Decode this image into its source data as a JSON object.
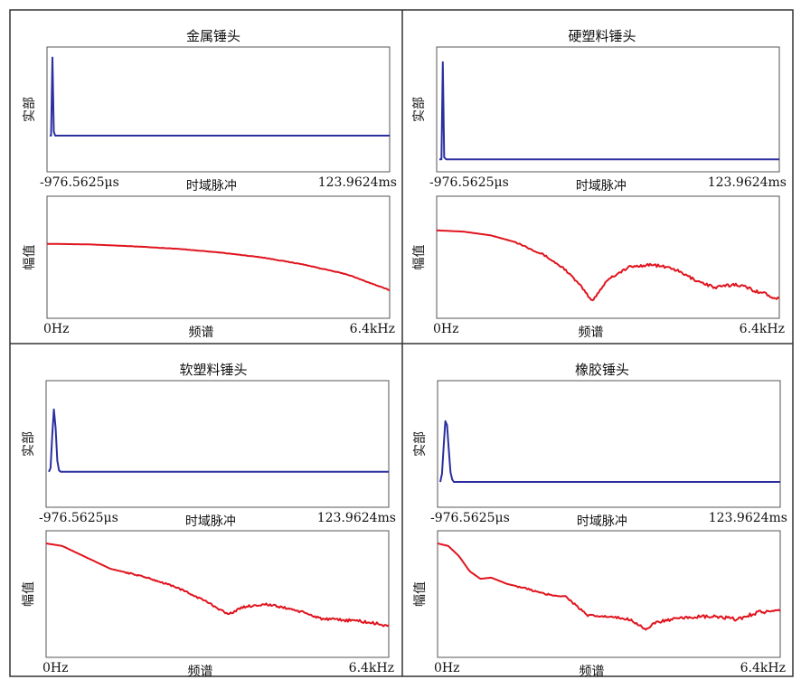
{
  "colors": {
    "time_trace": "#2b2f9e",
    "freq_trace": "#e0141e",
    "frame": "#333333",
    "axes_box": "#555555"
  },
  "panels": [
    {
      "title": "金属锤头",
      "time_plot": {
        "ylabel": "实部",
        "xlabel": "时域脉冲",
        "x_start": "-976.5625μs",
        "x_end": "123.9624ms"
      },
      "freq_plot": {
        "ylabel": "幅值",
        "xlabel": "频谱",
        "x_start": "0Hz",
        "x_end": "6.4kHz"
      }
    },
    {
      "title": "硬塑料锤头",
      "time_plot": {
        "ylabel": "实部",
        "xlabel": "时域脉冲",
        "x_start": "-976.5625μs",
        "x_end": "123.9624ms"
      },
      "freq_plot": {
        "ylabel": "幅值",
        "xlabel": "频谱",
        "x_start": "0Hz",
        "x_end": "6.4kHz"
      }
    },
    {
      "title": "软塑料锤头",
      "time_plot": {
        "ylabel": "实部",
        "xlabel": "时域脉冲",
        "x_start": "-976.5625μs",
        "x_end": "123.9624ms"
      },
      "freq_plot": {
        "ylabel": "幅值",
        "xlabel": "频谱",
        "x_start": "0Hz",
        "x_end": "6.4kHz"
      }
    },
    {
      "title": "橡胶锤头",
      "time_plot": {
        "ylabel": "实部",
        "xlabel": "时域脉冲",
        "x_start": "-976.5625μs",
        "x_end": "123.9624ms"
      },
      "freq_plot": {
        "ylabel": "幅值",
        "xlabel": "频谱",
        "x_start": "0Hz",
        "x_end": "6.4kHz"
      }
    }
  ],
  "chart_data": [
    {
      "type": "line",
      "panel": "金属锤头",
      "plot": "时域脉冲",
      "xlabel": "时域脉冲",
      "ylabel": "实部",
      "x_range_labels": [
        "-976.5625μs",
        "123.9624ms"
      ],
      "x_unit": "fraction of span",
      "y_unit": "normalized amplitude",
      "x": [
        0,
        0.004,
        0.008,
        0.012,
        0.016,
        0.02,
        1.0
      ],
      "y": [
        0,
        0,
        0.92,
        0.05,
        0,
        0,
        0
      ]
    },
    {
      "type": "line",
      "panel": "金属锤头",
      "plot": "频谱",
      "xlabel": "频谱",
      "ylabel": "幅值",
      "x_range_labels": [
        "0Hz",
        "6.4kHz"
      ],
      "x_unit": "kHz",
      "y_unit": "normalized amplitude",
      "x": [
        0,
        0.8,
        1.6,
        2.4,
        3.2,
        4.0,
        4.8,
        5.6,
        6.4
      ],
      "y": [
        0.61,
        0.605,
        0.59,
        0.57,
        0.54,
        0.5,
        0.44,
        0.36,
        0.23
      ]
    },
    {
      "type": "line",
      "panel": "硬塑料锤头",
      "plot": "时域脉冲",
      "xlabel": "时域脉冲",
      "ylabel": "实部",
      "x_range_labels": [
        "-976.5625μs",
        "123.9624ms"
      ],
      "x_unit": "fraction of span",
      "y_unit": "normalized amplitude",
      "x": [
        0,
        0.006,
        0.01,
        0.014,
        0.02,
        1.0
      ],
      "y": [
        0,
        0,
        0.95,
        0.02,
        0,
        0
      ]
    },
    {
      "type": "line",
      "panel": "硬塑料锤头",
      "plot": "频谱",
      "xlabel": "频谱",
      "ylabel": "幅值",
      "x_range_labels": [
        "0Hz",
        "6.4kHz"
      ],
      "x_unit": "kHz",
      "y_unit": "normalized amplitude",
      "x": [
        0,
        0.5,
        1.0,
        1.5,
        2.0,
        2.4,
        2.7,
        2.9,
        3.2,
        3.6,
        4.0,
        4.4,
        4.8,
        5.2,
        5.6,
        6.0,
        6.4
      ],
      "y": [
        0.72,
        0.71,
        0.68,
        0.62,
        0.52,
        0.4,
        0.26,
        0.14,
        0.32,
        0.42,
        0.44,
        0.41,
        0.32,
        0.25,
        0.28,
        0.22,
        0.16
      ]
    },
    {
      "type": "line",
      "panel": "软塑料锤头",
      "plot": "时域脉冲",
      "xlabel": "时域脉冲",
      "ylabel": "实部",
      "x_range_labels": [
        "-976.5625μs",
        "123.9624ms"
      ],
      "x_unit": "fraction of span",
      "y_unit": "normalized amplitude",
      "x": [
        0,
        0.005,
        0.01,
        0.015,
        0.02,
        0.025,
        0.03,
        0.035,
        1.0
      ],
      "y": [
        0,
        0.05,
        0.5,
        0.85,
        0.6,
        0.15,
        0.02,
        0,
        0
      ]
    },
    {
      "type": "line",
      "panel": "软塑料锤头",
      "plot": "频谱",
      "xlabel": "频谱",
      "ylabel": "幅值",
      "x_range_labels": [
        "0Hz",
        "6.4kHz"
      ],
      "x_unit": "kHz",
      "y_unit": "normalized amplitude",
      "x": [
        0,
        0.3,
        0.7,
        1.2,
        1.8,
        2.4,
        3.0,
        3.4,
        3.7,
        4.1,
        4.6,
        5.2,
        5.8,
        6.4
      ],
      "y": [
        0.9,
        0.88,
        0.8,
        0.7,
        0.64,
        0.56,
        0.44,
        0.34,
        0.4,
        0.42,
        0.38,
        0.3,
        0.29,
        0.25
      ]
    },
    {
      "type": "line",
      "panel": "橡胶锤头",
      "plot": "时域脉冲",
      "xlabel": "时域脉冲",
      "ylabel": "实部",
      "x_range_labels": [
        "-976.5625μs",
        "123.9624ms"
      ],
      "x_unit": "fraction of span",
      "y_unit": "normalized amplitude",
      "x": [
        0,
        0.005,
        0.01,
        0.015,
        0.02,
        0.025,
        0.03,
        0.035,
        0.04,
        0.05,
        1.0
      ],
      "y": [
        0,
        0.1,
        0.45,
        0.75,
        0.7,
        0.4,
        0.12,
        0.03,
        0,
        0,
        0
      ]
    },
    {
      "type": "line",
      "panel": "橡胶锤头",
      "plot": "频谱",
      "xlabel": "频谱",
      "ylabel": "幅值",
      "x_range_labels": [
        "0Hz",
        "6.4kHz"
      ],
      "x_unit": "kHz",
      "y_unit": "normalized amplitude",
      "x": [
        0,
        0.2,
        0.4,
        0.6,
        0.8,
        1.0,
        1.3,
        1.6,
        2.0,
        2.4,
        2.8,
        3.2,
        3.6,
        3.9,
        4.1,
        4.4,
        4.8,
        5.2,
        5.6,
        6.0,
        6.4
      ],
      "y": [
        0.9,
        0.88,
        0.8,
        0.68,
        0.62,
        0.63,
        0.58,
        0.55,
        0.5,
        0.48,
        0.33,
        0.32,
        0.3,
        0.22,
        0.28,
        0.3,
        0.32,
        0.32,
        0.3,
        0.36,
        0.36
      ]
    }
  ]
}
